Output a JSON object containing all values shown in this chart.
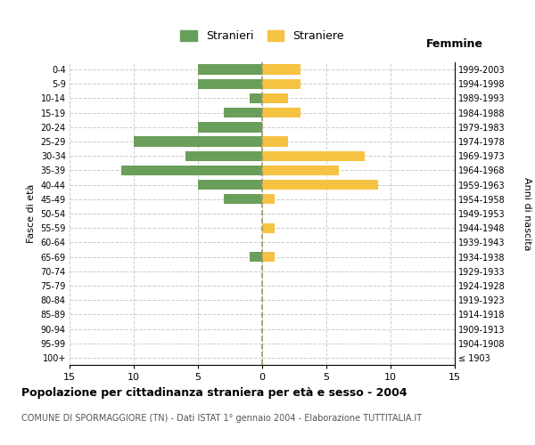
{
  "age_groups": [
    "100+",
    "95-99",
    "90-94",
    "85-89",
    "80-84",
    "75-79",
    "70-74",
    "65-69",
    "60-64",
    "55-59",
    "50-54",
    "45-49",
    "40-44",
    "35-39",
    "30-34",
    "25-29",
    "20-24",
    "15-19",
    "10-14",
    "5-9",
    "0-4"
  ],
  "birth_years": [
    "≤ 1903",
    "1904-1908",
    "1909-1913",
    "1914-1918",
    "1919-1923",
    "1924-1928",
    "1929-1933",
    "1934-1938",
    "1939-1943",
    "1944-1948",
    "1949-1953",
    "1954-1958",
    "1959-1963",
    "1964-1968",
    "1969-1973",
    "1974-1978",
    "1979-1983",
    "1984-1988",
    "1989-1993",
    "1994-1998",
    "1999-2003"
  ],
  "males": [
    0,
    0,
    0,
    0,
    0,
    0,
    0,
    1,
    0,
    0,
    0,
    3,
    5,
    11,
    6,
    10,
    5,
    3,
    1,
    5,
    5
  ],
  "females": [
    0,
    0,
    0,
    0,
    0,
    0,
    0,
    1,
    0,
    1,
    0,
    1,
    9,
    6,
    8,
    2,
    0,
    3,
    2,
    3,
    3
  ],
  "male_color": "#6a9e5b",
  "female_color": "#f5c242",
  "grid_color": "#cccccc",
  "center_line_color": "#999966",
  "title": "Popolazione per cittadinanza straniera per età e sesso - 2004",
  "subtitle": "COMUNE DI SPORMAGGIORE (TN) - Dati ISTAT 1° gennaio 2004 - Elaborazione TUTTITALIA.IT",
  "xlabel_right": "Femmine",
  "ylabel_left": "Fasce di età",
  "ylabel_right": "Anni di nascita",
  "legend_male": "Stranieri",
  "legend_female": "Straniere",
  "xlim": 15,
  "background_color": "#ffffff"
}
